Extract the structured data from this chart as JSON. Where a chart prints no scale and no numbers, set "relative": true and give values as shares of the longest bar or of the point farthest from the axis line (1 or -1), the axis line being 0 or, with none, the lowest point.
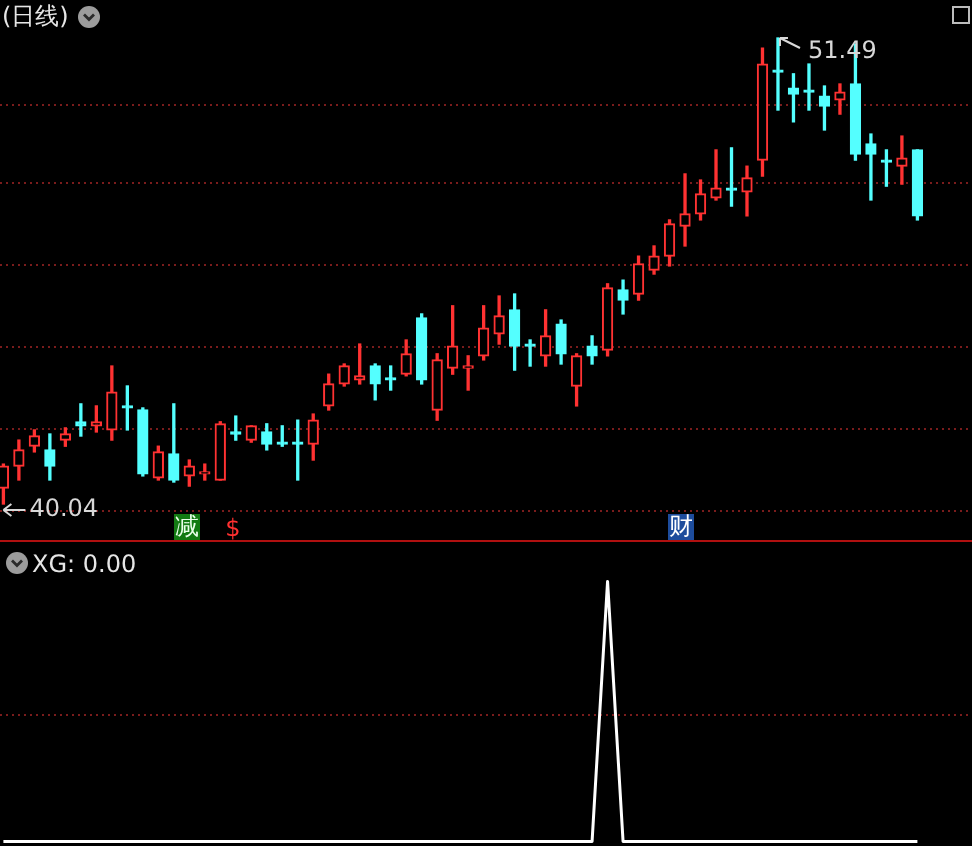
{
  "chart_data": [
    {
      "type": "candlestick",
      "title": "(日线)",
      "grid": "y",
      "categories": [
        null,
        null,
        null,
        null,
        null,
        null,
        null,
        null,
        null,
        null,
        null,
        null,
        null,
        null,
        null,
        null,
        null,
        null,
        null,
        null,
        null,
        null,
        null,
        null,
        null,
        null,
        null,
        null,
        null,
        null,
        null,
        null,
        null,
        null,
        null,
        null,
        null,
        null,
        null,
        null,
        null,
        null,
        null,
        null,
        null,
        null,
        null,
        null,
        null,
        null,
        null,
        null,
        null,
        null,
        null,
        null,
        null,
        null,
        null,
        null
      ],
      "yticks": [
        {
          "value": 49.87,
          "label": null
        },
        {
          "value": 47.95,
          "label": null
        },
        {
          "value": 45.94,
          "label": null
        },
        {
          "value": 43.92,
          "label": null
        },
        {
          "value": 41.91,
          "label": null
        },
        {
          "value": 39.89,
          "label": null
        }
      ],
      "ohlc": [
        [
          40.43,
          41.02,
          40.04,
          40.97
        ],
        [
          40.97,
          41.61,
          40.63,
          41.37
        ],
        [
          41.46,
          41.86,
          41.32,
          41.71
        ],
        [
          41.37,
          41.76,
          40.63,
          40.97
        ],
        [
          41.61,
          41.91,
          41.46,
          41.76
        ],
        [
          42.06,
          42.5,
          41.71,
          41.96
        ],
        [
          41.96,
          42.45,
          41.81,
          42.06
        ],
        [
          41.86,
          43.43,
          41.61,
          42.79
        ],
        [
          42.45,
          42.94,
          41.86,
          42.4
        ],
        [
          42.35,
          42.4,
          40.73,
          40.78
        ],
        [
          40.68,
          41.46,
          40.63,
          41.32
        ],
        [
          41.27,
          42.5,
          40.58,
          40.63
        ],
        [
          40.73,
          41.12,
          40.48,
          40.97
        ],
        [
          40.78,
          41.02,
          40.63,
          40.83
        ],
        [
          40.63,
          42.06,
          40.63,
          42.01
        ],
        [
          41.81,
          42.2,
          41.61,
          41.76
        ],
        [
          41.61,
          41.96,
          41.56,
          41.96
        ],
        [
          41.81,
          42.01,
          41.37,
          41.51
        ],
        [
          41.56,
          41.96,
          41.46,
          41.51
        ],
        [
          41.56,
          42.1,
          40.63,
          41.51
        ],
        [
          41.51,
          42.25,
          41.12,
          42.1
        ],
        [
          42.45,
          43.23,
          42.35,
          42.99
        ],
        [
          42.99,
          43.48,
          42.94,
          43.43
        ],
        [
          43.09,
          43.97,
          42.99,
          43.19
        ],
        [
          43.43,
          43.48,
          42.6,
          42.99
        ],
        [
          43.14,
          43.43,
          42.84,
          43.09
        ],
        [
          43.23,
          44.07,
          43.19,
          43.73
        ],
        [
          44.61,
          44.71,
          42.99,
          43.09
        ],
        [
          42.35,
          43.73,
          42.1,
          43.58
        ],
        [
          43.38,
          44.91,
          43.23,
          43.92
        ],
        [
          43.38,
          43.68,
          42.84,
          43.43
        ],
        [
          43.68,
          44.91,
          43.58,
          44.36
        ],
        [
          44.22,
          45.15,
          43.97,
          44.66
        ],
        [
          44.81,
          45.2,
          43.33,
          43.92
        ],
        [
          43.97,
          44.07,
          43.43,
          43.92
        ],
        [
          43.68,
          44.81,
          43.43,
          44.17
        ],
        [
          44.46,
          44.56,
          43.48,
          43.73
        ],
        [
          42.94,
          43.73,
          42.45,
          43.68
        ],
        [
          43.92,
          44.17,
          43.48,
          43.68
        ],
        [
          43.82,
          45.45,
          43.68,
          45.35
        ],
        [
          45.3,
          45.54,
          44.71,
          45.05
        ],
        [
          45.2,
          46.13,
          45.05,
          45.94
        ],
        [
          45.79,
          46.38,
          45.69,
          46.13
        ],
        [
          46.13,
          47.02,
          45.89,
          46.92
        ],
        [
          46.87,
          48.15,
          46.38,
          47.17
        ],
        [
          47.17,
          48.0,
          47.02,
          47.66
        ],
        [
          47.56,
          48.74,
          47.51,
          47.8
        ],
        [
          47.8,
          48.79,
          47.36,
          47.75
        ],
        [
          47.71,
          48.34,
          47.12,
          48.05
        ],
        [
          48.49,
          51.24,
          48.1,
          50.85
        ],
        [
          50.7,
          51.49,
          49.72,
          50.65
        ],
        [
          50.26,
          50.61,
          49.43,
          50.11
        ],
        [
          50.21,
          50.85,
          49.72,
          50.16
        ],
        [
          50.06,
          50.31,
          49.23,
          49.82
        ],
        [
          49.97,
          50.36,
          49.62,
          50.16
        ],
        [
          50.36,
          51.34,
          48.49,
          48.64
        ],
        [
          48.89,
          49.13,
          47.51,
          48.64
        ],
        [
          48.49,
          48.74,
          47.85,
          48.44
        ],
        [
          48.34,
          49.08,
          47.9,
          48.54
        ],
        [
          48.74,
          48.74,
          47.02,
          47.12
        ]
      ],
      "colors": [
        "#ff3232",
        "#ff3232",
        "#ff3232",
        "#54ffff",
        "#ff3232",
        "#54ffff",
        "#ff3232",
        "#ff3232",
        "#54ffff",
        "#54ffff",
        "#ff3232",
        "#54ffff",
        "#ff3232",
        "#ff3232",
        "#ff3232",
        "#54ffff",
        "#ff3232",
        "#54ffff",
        "#54ffff",
        "#54ffff",
        "#ff3232",
        "#ff3232",
        "#ff3232",
        "#ff3232",
        "#54ffff",
        "#54ffff",
        "#ff3232",
        "#54ffff",
        "#ff3232",
        "#ff3232",
        "#ff3232",
        "#ff3232",
        "#ff3232",
        "#54ffff",
        "#54ffff",
        "#ff3232",
        "#54ffff",
        "#ff3232",
        "#54ffff",
        "#ff3232",
        "#54ffff",
        "#ff3232",
        "#ff3232",
        "#ff3232",
        "#ff3232",
        "#ff3232",
        "#ff3232",
        "#54ffff",
        "#ff3232",
        "#ff3232",
        "#54ffff",
        "#54ffff",
        "#54ffff",
        "#54ffff",
        "#ff3232",
        "#54ffff",
        "#54ffff",
        "#54ffff",
        "#ff3232",
        "#54ffff"
      ],
      "annotations": [
        "51.49",
        "40.04",
        "减",
        "$",
        "财"
      ]
    },
    {
      "type": "line",
      "title": "XG: 0.00",
      "relative": true,
      "marker": "none",
      "categories": [
        null,
        null,
        null,
        null,
        null,
        null,
        null,
        null,
        null,
        null,
        null,
        null,
        null,
        null,
        null,
        null,
        null,
        null,
        null,
        null,
        null,
        null,
        null,
        null,
        null,
        null,
        null,
        null,
        null,
        null,
        null,
        null,
        null,
        null,
        null,
        null,
        null,
        null,
        null,
        null,
        null,
        null,
        null,
        null,
        null,
        null,
        null,
        null,
        null,
        null,
        null,
        null,
        null,
        null,
        null,
        null,
        null,
        null,
        null,
        null
      ],
      "ref_lines": [
        {
          "axis": "y",
          "value": 0.49,
          "color": "#7a1c1c",
          "line_style": "dotted"
        }
      ],
      "series": [
        {
          "color": "#ffffff",
          "values": [
            0,
            0,
            0,
            0,
            0,
            0,
            0,
            0,
            0,
            0,
            0,
            0,
            0,
            0,
            0,
            0,
            0,
            0,
            0,
            0,
            0,
            0,
            0,
            0,
            0,
            0,
            0,
            0,
            0,
            0,
            0,
            0,
            0,
            0,
            0,
            0,
            0,
            0,
            0,
            1,
            0,
            0,
            0,
            0,
            0,
            0,
            0,
            0,
            0,
            0,
            0,
            0,
            0,
            0,
            0,
            0,
            0,
            0,
            0,
            0
          ]
        }
      ]
    }
  ]
}
